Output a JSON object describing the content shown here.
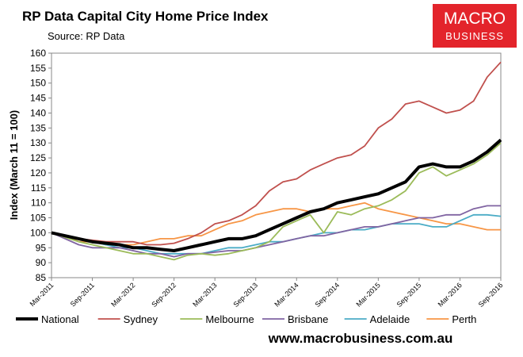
{
  "chart_data": {
    "type": "line",
    "title": "RP Data Capital City Home Price Index",
    "subtitle": "Source: RP Data",
    "y_label": "Index (March 11 = 100)",
    "x": [
      "2011-03",
      "2011-05",
      "2011-07",
      "2011-09",
      "2011-11",
      "2012-01",
      "2012-03",
      "2012-05",
      "2012-07",
      "2012-09",
      "2012-11",
      "2013-01",
      "2013-03",
      "2013-05",
      "2013-07",
      "2013-09",
      "2013-11",
      "2014-01",
      "2014-03",
      "2014-05",
      "2014-07",
      "2014-09",
      "2014-11",
      "2015-01",
      "2015-03",
      "2015-05",
      "2015-07",
      "2015-09",
      "2015-11",
      "2016-01",
      "2016-03",
      "2016-05",
      "2016-07",
      "2016-09"
    ],
    "xlim": [
      "2011-03",
      "2016-09"
    ],
    "xticks": [
      {
        "value": "2011-03",
        "label": "Mar-2011"
      },
      {
        "value": "2011-09",
        "label": "Sep-2011"
      },
      {
        "value": "2012-03",
        "label": "Mar-2012"
      },
      {
        "value": "2012-09",
        "label": "Sep-2012"
      },
      {
        "value": "2013-03",
        "label": "Mar-2013"
      },
      {
        "value": "2013-09",
        "label": "Sep-2013"
      },
      {
        "value": "2014-03",
        "label": "Mar-2014"
      },
      {
        "value": "2014-09",
        "label": "Sep-2014"
      },
      {
        "value": "2015-03",
        "label": "Mar-2015"
      },
      {
        "value": "2015-09",
        "label": "Sep-2015"
      },
      {
        "value": "2016-03",
        "label": "Mar-2016"
      },
      {
        "value": "2016-09",
        "label": "Sep-2016"
      }
    ],
    "ylim": [
      85,
      160
    ],
    "yticks": [
      85,
      90,
      95,
      100,
      105,
      110,
      115,
      120,
      125,
      130,
      135,
      140,
      145,
      150,
      155,
      160
    ],
    "grid": false,
    "legend": "bottom",
    "series": [
      {
        "name": "National",
        "color": "#000000",
        "width": 4,
        "values": [
          100,
          99,
          98,
          97,
          96.5,
          96,
          95,
          95,
          94.5,
          94,
          95,
          96,
          97,
          98,
          98,
          99,
          101,
          103,
          105,
          107,
          108,
          110,
          111,
          112,
          113,
          115,
          117,
          122,
          123,
          122,
          122,
          124,
          127,
          131
        ]
      },
      {
        "name": "Sydney",
        "color": "#c0504d",
        "width": 1.8,
        "values": [
          100,
          99,
          98,
          97.5,
          97,
          97,
          97,
          96,
          96,
          96.5,
          98,
          100,
          103,
          104,
          106,
          109,
          114,
          117,
          118,
          121,
          123,
          125,
          126,
          129,
          135,
          138,
          143,
          144,
          142,
          140,
          141,
          144,
          152,
          157
        ]
      },
      {
        "name": "Melbourne",
        "color": "#9bbb59",
        "width": 1.8,
        "values": [
          100,
          98.5,
          97,
          96,
          95,
          94,
          93,
          93,
          92,
          91,
          92.5,
          93,
          92.5,
          93,
          94,
          95,
          97,
          102,
          104,
          106,
          100,
          107,
          106,
          108,
          109,
          111,
          114,
          120,
          122,
          119,
          121,
          123,
          126,
          130
        ]
      },
      {
        "name": "Brisbane",
        "color": "#8064a2",
        "width": 1.8,
        "values": [
          100,
          98,
          96,
          95,
          95,
          95,
          94,
          93,
          93,
          92,
          93,
          93,
          93.5,
          94,
          94,
          95,
          96,
          97,
          98,
          99,
          99,
          100,
          101,
          102,
          102,
          103,
          104,
          105,
          105,
          106,
          106,
          108,
          109,
          109
        ]
      },
      {
        "name": "Adelaide",
        "color": "#4bacc6",
        "width": 1.8,
        "values": [
          100,
          99,
          98,
          97,
          96,
          95,
          95,
          94,
          93,
          93,
          93,
          93,
          94,
          95,
          95,
          96,
          97,
          97,
          98,
          99,
          100,
          100,
          101,
          101,
          102,
          103,
          103,
          103,
          102,
          102,
          104,
          106,
          106,
          105.5
        ]
      },
      {
        "name": "Perth",
        "color": "#f79646",
        "width": 1.8,
        "values": [
          100,
          99,
          97,
          97,
          96,
          96,
          96,
          97,
          98,
          98,
          99,
          99,
          101,
          103,
          104,
          106,
          107,
          108,
          108,
          107,
          108,
          108,
          109,
          110,
          108,
          107,
          106,
          105,
          104,
          103,
          103,
          102,
          101,
          101
        ]
      }
    ]
  },
  "logo": {
    "line1": "MACRO",
    "line2": "BUSINESS"
  },
  "footer": "www.macrobusiness.com.au"
}
